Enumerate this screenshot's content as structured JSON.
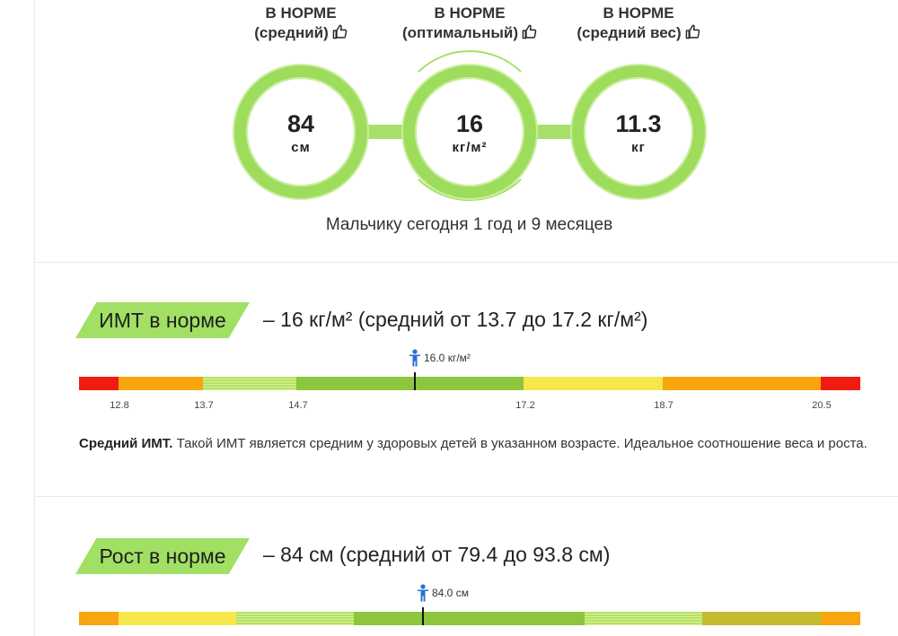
{
  "metrics": [
    {
      "status": "В НОРМЕ",
      "qualifier": "(средний)",
      "value": "84",
      "unit": "см"
    },
    {
      "status": "В НОРМЕ",
      "qualifier": "(оптимальный)",
      "value": "16",
      "unit": "кг/м²"
    },
    {
      "status": "В НОРМЕ",
      "qualifier": "(средний вес)",
      "value": "11.3",
      "unit": "кг"
    }
  ],
  "age_text": "Мальчику сегодня 1 год и 9 месяцев",
  "bmi": {
    "tag": "ИМТ в норме",
    "summary": "– 16 кг/м² (средний от 13.7 до 17.2 кг/м²)",
    "marker_label": "16.0 кг/м²",
    "ticks": [
      "12.8",
      "13.7",
      "14.7",
      "17.2",
      "18.7",
      "20.5"
    ],
    "desc_bold": "Средний ИМТ.",
    "desc_text": " Такой ИМТ является средним у здоровых детей в указанном возрасте. Идеальное соотношение веса и роста."
  },
  "height": {
    "tag": "Рост в норме",
    "summary": "– 84 см (средний от 79.4 до 93.8 см)",
    "marker_label": "84.0 см"
  },
  "colors": {
    "ring": "#9edc5c",
    "red": "#f01c12",
    "orange": "#f8a50e",
    "light_green": "#b6e25e",
    "green": "#8cc63f",
    "yellow": "#f6e84a",
    "olive": "#c6bb2e"
  },
  "icons": [
    "thumbs-up-icon",
    "child-icon"
  ]
}
